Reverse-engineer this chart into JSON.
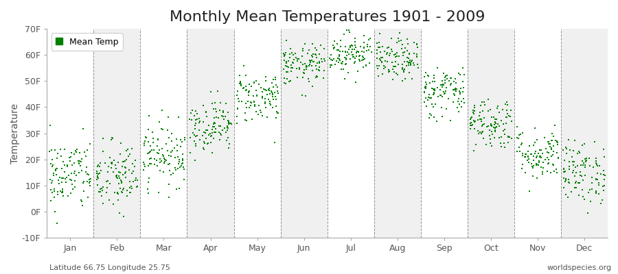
{
  "title": "Monthly Mean Temperatures 1901 - 2009",
  "ylabel": "Temperature",
  "bottom_left": "Latitude 66.75 Longitude 25.75",
  "bottom_right": "worldspecies.org",
  "legend_label": "Mean Temp",
  "dot_color": "#008000",
  "dot_size": 3,
  "ylim": [
    -10,
    70
  ],
  "yticks": [
    -10,
    0,
    10,
    20,
    30,
    40,
    50,
    60,
    70
  ],
  "ytick_labels": [
    "-10F",
    "0F",
    "10F",
    "20F",
    "30F",
    "40F",
    "50F",
    "60F",
    "70F"
  ],
  "months": [
    "Jan",
    "Feb",
    "Mar",
    "Apr",
    "May",
    "Jun",
    "Jul",
    "Aug",
    "Sep",
    "Oct",
    "Nov",
    "Dec"
  ],
  "mean_temps_f": [
    14,
    13,
    22,
    33,
    44,
    56,
    61,
    58,
    46,
    34,
    22,
    15
  ],
  "std_temps_f": [
    7,
    7,
    6,
    5,
    5,
    4,
    4,
    4,
    5,
    5,
    5,
    6
  ],
  "n_years": 109,
  "background_color": "#ffffff",
  "band_color_odd": "#f0f0f0",
  "band_color_even": "#ffffff",
  "grid_color": "#666666",
  "title_fontsize": 16,
  "axis_label_fontsize": 10,
  "tick_fontsize": 9,
  "annotation_fontsize": 8
}
